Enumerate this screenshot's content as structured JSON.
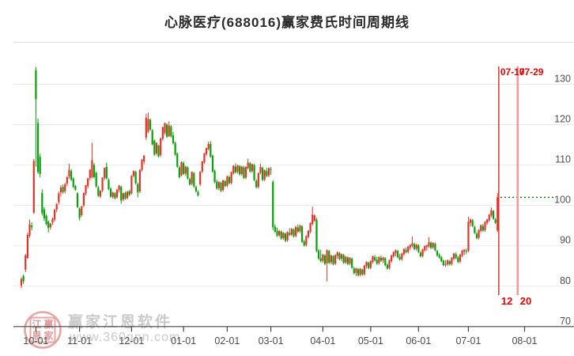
{
  "title": "心脉医疗(688016)赢家费氏时间周期线",
  "watermark": {
    "brand": "赢家江恩软件",
    "url": "www.360gnn.com",
    "seal_chars": [
      "江",
      "赢",
      "恩",
      "家"
    ]
  },
  "colors": {
    "up": "#e03328",
    "down": "#07a007",
    "grid": "#e9e9e9",
    "axis_line": "#444444",
    "axis_text": "#4d4d4d",
    "fib_line_1": "#d42a2a",
    "fib_line_2": "#f59898",
    "fib_label": "#e60000",
    "last_close_line": "#007a00",
    "watermark": "#e7a6a6"
  },
  "chart_data": {
    "type": "candlestick",
    "title": "心脉医疗(688016)赢家费氏时间周期线",
    "ylim": [
      70,
      135
    ],
    "y_ticks": [
      130,
      120,
      110,
      100,
      90,
      80,
      70
    ],
    "grid": true,
    "last_close": 102.0,
    "x_ticks": [
      {
        "label": "10-01",
        "i": 7
      },
      {
        "label": "11-01",
        "i": 28
      },
      {
        "label": "12-01",
        "i": 53
      },
      {
        "label": "01-01",
        "i": 78
      },
      {
        "label": "02-01",
        "i": 99
      },
      {
        "label": "03-01",
        "i": 120
      },
      {
        "label": "04-01",
        "i": 145
      },
      {
        "label": "05-01",
        "i": 168
      },
      {
        "label": "06-01",
        "i": 191
      },
      {
        "label": "07-01",
        "i": 215
      },
      {
        "label": "08-01",
        "i": 242
      }
    ],
    "fib_time_lines": [
      {
        "date_label": "07-17",
        "count_label": "12",
        "i": 229.6,
        "style": "thin"
      },
      {
        "date_label": "07-29",
        "count_label": "20",
        "i": 238.7,
        "style": "thick"
      }
    ],
    "candles": [
      [
        80.2,
        82.2,
        79.5,
        81.8
      ],
      [
        82.5,
        82.9,
        80.6,
        81.2
      ],
      [
        84.1,
        88.0,
        83.5,
        87.6
      ],
      [
        87.0,
        93.2,
        86.8,
        92.7
      ],
      [
        92.5,
        96.5,
        92.0,
        95.3
      ],
      [
        95.0,
        95.8,
        93.8,
        94.6
      ],
      [
        98.2,
        111.5,
        97.9,
        111.0
      ],
      [
        133.5,
        134.3,
        109.6,
        126.3
      ],
      [
        120.4,
        121.5,
        107.8,
        108.3
      ],
      [
        112.0,
        112.8,
        106.9,
        107.8
      ],
      [
        103.1,
        104.0,
        97.5,
        98.1
      ],
      [
        99.0,
        99.6,
        96.2,
        96.8
      ],
      [
        97.4,
        97.8,
        95.0,
        95.4
      ],
      [
        96.0,
        96.3,
        93.3,
        94.4
      ],
      [
        94.6,
        95.7,
        94.0,
        95.5
      ],
      [
        95.8,
        97.0,
        95.2,
        96.7
      ],
      [
        96.5,
        99.2,
        96.0,
        98.9
      ],
      [
        99.0,
        100.6,
        98.3,
        100.3
      ],
      [
        100.8,
        103.4,
        100.2,
        103.0
      ],
      [
        103.2,
        105.0,
        102.2,
        104.4
      ],
      [
        104.6,
        105.2,
        102.9,
        103.3
      ],
      [
        103.5,
        105.6,
        103.0,
        105.2
      ],
      [
        105.4,
        107.3,
        104.8,
        107.0
      ],
      [
        107.2,
        110.3,
        106.6,
        108.8
      ],
      [
        108.5,
        109.0,
        106.0,
        106.4
      ],
      [
        106.6,
        107.0,
        104.3,
        104.6
      ],
      [
        104.8,
        105.1,
        103.6,
        103.9
      ],
      [
        103.0,
        103.3,
        99.3,
        99.6
      ],
      [
        99.2,
        99.5,
        96.3,
        96.9
      ],
      [
        97.6,
        99.9,
        97.2,
        99.8
      ],
      [
        100.0,
        103.2,
        99.6,
        103.1
      ],
      [
        103.0,
        105.1,
        102.5,
        105.0
      ],
      [
        104.8,
        106.8,
        104.2,
        106.7
      ],
      [
        106.8,
        109.0,
        106.2,
        108.8
      ],
      [
        107.0,
        115.5,
        106.7,
        111.2
      ],
      [
        110.0,
        110.5,
        106.7,
        107.0
      ],
      [
        108.0,
        108.4,
        104.4,
        104.7
      ],
      [
        104.4,
        104.8,
        102.1,
        102.4
      ],
      [
        102.2,
        103.8,
        101.8,
        103.6
      ],
      [
        103.7,
        107.0,
        103.3,
        106.8
      ],
      [
        106.8,
        109.4,
        106.3,
        109.3
      ],
      [
        109.6,
        110.6,
        106.4,
        106.7
      ],
      [
        106.3,
        106.7,
        103.8,
        104.0
      ],
      [
        104.1,
        104.5,
        101.9,
        102.2
      ],
      [
        102.1,
        103.4,
        101.7,
        103.2
      ],
      [
        103.0,
        103.3,
        101.5,
        101.8
      ],
      [
        102.0,
        104.1,
        101.7,
        103.9
      ],
      [
        103.8,
        105.1,
        103.2,
        104.9
      ],
      [
        104.6,
        104.9,
        100.4,
        101.2
      ],
      [
        101.5,
        103.2,
        101.0,
        103.0
      ],
      [
        103.1,
        103.4,
        101.4,
        101.7
      ],
      [
        101.9,
        103.6,
        101.5,
        103.4
      ],
      [
        103.5,
        103.9,
        102.3,
        102.6
      ],
      [
        103.0,
        107.5,
        102.7,
        107.3
      ],
      [
        107.3,
        108.7,
        106.9,
        108.5
      ],
      [
        108.3,
        108.6,
        105.2,
        105.5
      ],
      [
        105.3,
        105.6,
        102.0,
        103.2
      ],
      [
        103.5,
        109.0,
        103.1,
        108.8
      ],
      [
        108.8,
        111.5,
        108.4,
        111.3
      ],
      [
        110.9,
        112.5,
        110.2,
        112.3
      ],
      [
        116.8,
        122.7,
        116.2,
        121.7
      ],
      [
        118.3,
        123.0,
        117.9,
        121.4
      ],
      [
        121.2,
        121.5,
        118.5,
        118.8
      ],
      [
        118.6,
        118.9,
        114.9,
        115.1
      ],
      [
        116.0,
        116.3,
        112.3,
        112.6
      ],
      [
        112.9,
        115.6,
        112.4,
        115.5
      ],
      [
        114.8,
        115.0,
        111.9,
        112.1
      ],
      [
        112.5,
        116.8,
        112.0,
        116.6
      ],
      [
        116.5,
        119.5,
        116.0,
        119.4
      ],
      [
        118.0,
        120.5,
        117.5,
        120.4
      ],
      [
        120.0,
        120.3,
        116.7,
        117.0
      ],
      [
        117.2,
        120.8,
        116.9,
        119.8
      ],
      [
        119.5,
        119.9,
        116.8,
        117.1
      ],
      [
        117.3,
        118.2,
        115.1,
        115.4
      ],
      [
        115.5,
        115.8,
        112.3,
        112.6
      ],
      [
        112.8,
        113.1,
        109.3,
        109.6
      ],
      [
        109.4,
        109.8,
        106.7,
        107.0
      ],
      [
        107.5,
        110.9,
        107.2,
        110.7
      ],
      [
        110.5,
        110.9,
        107.5,
        107.8
      ],
      [
        107.9,
        109.8,
        107.4,
        109.6
      ],
      [
        109.4,
        109.7,
        106.4,
        106.7
      ],
      [
        106.5,
        106.9,
        104.9,
        105.2
      ],
      [
        105.4,
        108.4,
        105.0,
        108.3
      ],
      [
        108.0,
        108.3,
        104.4,
        104.7
      ],
      [
        104.5,
        104.9,
        103.2,
        103.5
      ],
      [
        103.3,
        103.7,
        102.2,
        102.5
      ],
      [
        105.2,
        108.5,
        104.8,
        108.3
      ],
      [
        108.4,
        111.0,
        108.0,
        110.9
      ],
      [
        110.7,
        113.0,
        110.3,
        112.9
      ],
      [
        112.7,
        114.3,
        112.2,
        114.2
      ],
      [
        114.0,
        115.8,
        113.6,
        115.2
      ],
      [
        115.2,
        115.9,
        111.8,
        112.1
      ],
      [
        112.3,
        112.6,
        108.1,
        108.4
      ],
      [
        108.5,
        108.9,
        105.5,
        105.8
      ],
      [
        105.9,
        106.4,
        103.9,
        104.2
      ],
      [
        104.3,
        106.0,
        103.8,
        105.8
      ],
      [
        105.6,
        105.9,
        103.3,
        103.6
      ],
      [
        103.8,
        106.4,
        103.4,
        106.2
      ],
      [
        106.0,
        106.3,
        104.5,
        104.8
      ],
      [
        104.9,
        107.4,
        104.5,
        107.2
      ],
      [
        107.0,
        107.4,
        105.2,
        105.5
      ],
      [
        105.6,
        108.4,
        105.2,
        108.2
      ],
      [
        108.0,
        110.0,
        107.6,
        109.8
      ],
      [
        109.6,
        110.4,
        107.9,
        108.2
      ],
      [
        108.3,
        110.1,
        107.9,
        109.9
      ],
      [
        109.7,
        110.0,
        107.4,
        107.7
      ],
      [
        107.8,
        109.8,
        107.4,
        109.6
      ],
      [
        109.4,
        109.8,
        106.5,
        106.8
      ],
      [
        106.9,
        109.7,
        106.5,
        109.5
      ],
      [
        109.3,
        111.6,
        108.9,
        110.6
      ],
      [
        110.4,
        110.8,
        108.1,
        108.4
      ],
      [
        108.5,
        110.4,
        108.1,
        110.2
      ],
      [
        110.0,
        110.3,
        106.0,
        106.3
      ],
      [
        106.1,
        106.5,
        104.2,
        104.5
      ],
      [
        104.6,
        108.2,
        104.2,
        108.0
      ],
      [
        108.1,
        110.3,
        107.7,
        109.5
      ],
      [
        109.3,
        109.6,
        106.0,
        106.3
      ],
      [
        106.4,
        108.9,
        106.0,
        108.7
      ],
      [
        108.5,
        109.3,
        107.0,
        107.3
      ],
      [
        107.4,
        109.4,
        107.0,
        109.2
      ],
      [
        109.0,
        109.5,
        107.6,
        108.9
      ],
      [
        105.8,
        106.2,
        93.9,
        94.6
      ],
      [
        94.7,
        95.3,
        93.2,
        93.5
      ],
      [
        93.7,
        94.5,
        92.2,
        92.5
      ],
      [
        92.6,
        93.9,
        92.2,
        93.7
      ],
      [
        93.5,
        93.8,
        91.5,
        91.8
      ],
      [
        91.9,
        93.4,
        91.5,
        93.2
      ],
      [
        93.0,
        93.3,
        90.9,
        91.2
      ],
      [
        91.4,
        93.6,
        91.0,
        93.4
      ],
      [
        93.2,
        94.4,
        92.4,
        92.7
      ],
      [
        92.8,
        94.4,
        92.4,
        94.2
      ],
      [
        94.0,
        94.3,
        92.1,
        92.4
      ],
      [
        92.5,
        94.9,
        92.1,
        94.7
      ],
      [
        94.5,
        95.3,
        93.2,
        93.5
      ],
      [
        93.6,
        95.2,
        93.2,
        95.0
      ],
      [
        94.8,
        95.1,
        90.7,
        91.0
      ],
      [
        91.1,
        91.5,
        89.8,
        90.1
      ],
      [
        90.2,
        92.6,
        89.8,
        92.4
      ],
      [
        92.2,
        93.9,
        91.8,
        93.7
      ],
      [
        93.5,
        95.8,
        93.1,
        95.6
      ],
      [
        95.4,
        99.7,
        95.0,
        97.7
      ],
      [
        96.2,
        97.8,
        95.9,
        97.5
      ],
      [
        96.5,
        96.9,
        88.4,
        88.7
      ],
      [
        88.8,
        89.2,
        86.5,
        86.8
      ],
      [
        86.9,
        89.0,
        85.9,
        86.2
      ],
      [
        86.3,
        88.0,
        85.8,
        87.8
      ],
      [
        87.6,
        87.9,
        85.2,
        85.5
      ],
      [
        85.7,
        89.1,
        81.2,
        88.9
      ],
      [
        88.7,
        89.0,
        85.5,
        85.8
      ],
      [
        85.9,
        87.8,
        85.4,
        87.6
      ],
      [
        87.4,
        87.7,
        85.2,
        85.5
      ],
      [
        85.6,
        87.9,
        85.2,
        87.7
      ],
      [
        87.5,
        88.6,
        86.8,
        88.4
      ],
      [
        88.2,
        88.5,
        86.4,
        86.7
      ],
      [
        86.8,
        88.1,
        86.2,
        87.9
      ],
      [
        87.7,
        88.0,
        85.5,
        85.8
      ],
      [
        85.9,
        87.5,
        85.5,
        87.3
      ],
      [
        87.1,
        87.4,
        85.2,
        85.5
      ],
      [
        85.6,
        87.2,
        85.2,
        87.0
      ],
      [
        86.8,
        87.1,
        84.3,
        84.6
      ],
      [
        84.4,
        84.8,
        82.9,
        83.2
      ],
      [
        83.3,
        84.6,
        82.5,
        84.4
      ],
      [
        84.2,
        84.5,
        82.4,
        82.7
      ],
      [
        82.8,
        84.5,
        82.4,
        84.3
      ],
      [
        84.1,
        84.4,
        82.6,
        82.9
      ],
      [
        83.0,
        85.3,
        82.6,
        85.1
      ],
      [
        85.0,
        86.2,
        84.4,
        86.0
      ],
      [
        85.8,
        86.1,
        84.2,
        84.5
      ],
      [
        84.6,
        86.4,
        84.2,
        86.2
      ],
      [
        86.0,
        87.6,
        85.6,
        87.4
      ],
      [
        87.2,
        87.7,
        86.1,
        86.4
      ],
      [
        86.5,
        87.3,
        85.3,
        85.6
      ],
      [
        85.7,
        87.4,
        85.3,
        87.2
      ],
      [
        87.0,
        87.6,
        86.0,
        86.3
      ],
      [
        86.4,
        87.3,
        85.7,
        87.1
      ],
      [
        86.9,
        87.2,
        84.9,
        85.2
      ],
      [
        85.3,
        85.7,
        84.1,
        84.4
      ],
      [
        84.5,
        86.6,
        84.1,
        86.4
      ],
      [
        86.2,
        87.8,
        85.8,
        87.6
      ],
      [
        87.4,
        88.6,
        87.0,
        88.4
      ],
      [
        88.2,
        89.1,
        87.4,
        88.9
      ],
      [
        88.7,
        89.0,
        86.9,
        87.2
      ],
      [
        87.3,
        88.0,
        86.3,
        86.6
      ],
      [
        86.7,
        88.3,
        86.3,
        88.1
      ],
      [
        87.9,
        89.4,
        87.5,
        89.2
      ],
      [
        89.0,
        89.6,
        88.1,
        88.4
      ],
      [
        88.5,
        90.0,
        88.1,
        89.8
      ],
      [
        89.6,
        90.4,
        89.0,
        90.2
      ],
      [
        90.0,
        92.3,
        89.6,
        90.6
      ],
      [
        90.4,
        90.8,
        88.9,
        89.2
      ],
      [
        89.3,
        90.5,
        88.8,
        90.3
      ],
      [
        90.1,
        90.4,
        88.2,
        88.5
      ],
      [
        88.3,
        88.7,
        87.1,
        87.4
      ],
      [
        87.5,
        89.3,
        87.1,
        89.1
      ],
      [
        88.9,
        90.1,
        88.5,
        89.9
      ],
      [
        89.7,
        90.3,
        88.8,
        90.1
      ],
      [
        89.9,
        92.1,
        89.5,
        90.9
      ],
      [
        90.7,
        91.1,
        89.2,
        89.5
      ],
      [
        89.6,
        90.9,
        89.2,
        90.7
      ],
      [
        90.5,
        90.8,
        88.6,
        88.9
      ],
      [
        88.7,
        89.0,
        87.3,
        87.6
      ],
      [
        87.7,
        88.2,
        86.8,
        87.1
      ],
      [
        87.2,
        87.5,
        85.9,
        86.2
      ],
      [
        86.3,
        86.6,
        84.9,
        85.2
      ],
      [
        85.3,
        86.4,
        84.8,
        85.5
      ],
      [
        85.4,
        86.6,
        85.0,
        86.4
      ],
      [
        86.2,
        86.5,
        85.1,
        85.4
      ],
      [
        85.5,
        87.2,
        85.1,
        87.0
      ],
      [
        86.8,
        88.3,
        86.4,
        88.1
      ],
      [
        87.9,
        88.4,
        86.7,
        87.0
      ],
      [
        87.1,
        87.5,
        85.7,
        86.0
      ],
      [
        86.1,
        88.0,
        85.7,
        87.8
      ],
      [
        87.6,
        89.0,
        87.2,
        88.8
      ],
      [
        88.6,
        89.2,
        87.7,
        89.0
      ],
      [
        88.8,
        89.3,
        87.9,
        88.6
      ],
      [
        88.8,
        97.2,
        88.4,
        95.9
      ],
      [
        95.7,
        96.8,
        94.8,
        96.5
      ],
      [
        96.3,
        96.6,
        94.6,
        94.9
      ],
      [
        94.7,
        95.0,
        92.9,
        93.2
      ],
      [
        93.0,
        93.4,
        91.6,
        91.9
      ],
      [
        92.0,
        94.1,
        91.6,
        93.9
      ],
      [
        93.7,
        95.3,
        93.3,
        95.1
      ],
      [
        94.9,
        95.4,
        93.5,
        93.8
      ],
      [
        93.9,
        96.1,
        93.5,
        95.9
      ],
      [
        95.7,
        96.7,
        95.2,
        96.5
      ],
      [
        96.3,
        97.9,
        95.9,
        97.7
      ],
      [
        97.5,
        99.5,
        97.1,
        98.8
      ],
      [
        98.6,
        98.9,
        96.4,
        96.7
      ],
      [
        96.5,
        96.9,
        95.4,
        95.7
      ],
      [
        93.8,
        103.1,
        93.4,
        102.0
      ]
    ]
  }
}
